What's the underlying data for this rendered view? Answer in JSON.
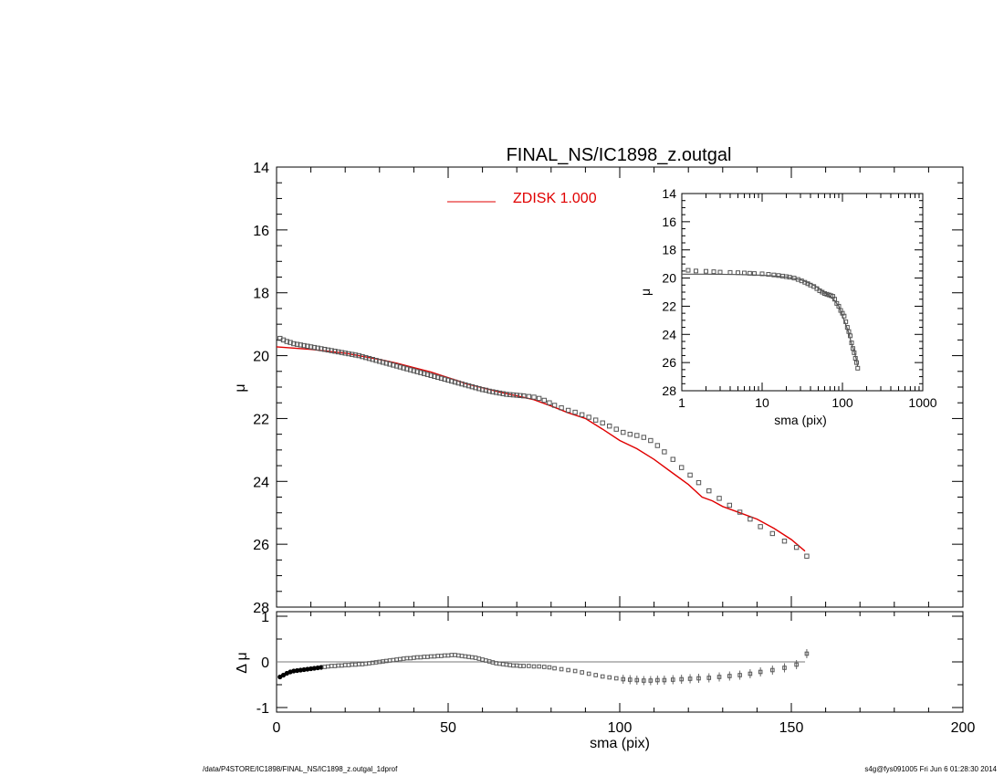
{
  "chart_data": [
    {
      "id": "main",
      "type": "scatter",
      "title": "FINAL_NS/IC1898_z.outgal",
      "xlabel": "",
      "ylabel": "μ",
      "xlim": [
        0,
        200
      ],
      "ylim": [
        28,
        14
      ],
      "y_inverted": true,
      "yticks": [
        14,
        16,
        18,
        20,
        22,
        24,
        26,
        28
      ],
      "legend": {
        "placement": "top-center",
        "entries": [
          {
            "name": "ZDISK  1.000",
            "color": "#e00000"
          }
        ]
      },
      "series": [
        {
          "name": "profile",
          "style": "open-squares",
          "color": "#555555",
          "x": [
            1.0,
            2.0,
            3.0,
            4.0,
            5.0,
            6.0,
            7.0,
            8.0,
            9.0,
            10.0,
            11.0,
            12.0,
            13.0,
            14.0,
            15.0,
            16.0,
            17.0,
            18.0,
            19.0,
            20.0,
            21.0,
            22.0,
            23.0,
            24.0,
            25.0,
            26.0,
            27.0,
            28.0,
            29.0,
            30.0,
            31.0,
            32.0,
            33.0,
            34.0,
            35.0,
            36.0,
            37.0,
            38.0,
            39.0,
            40.0,
            41.0,
            42.0,
            43.0,
            44.0,
            45.0,
            46.0,
            47.0,
            48.0,
            49.0,
            50.0,
            51.0,
            52.0,
            53.0,
            54.0,
            55.0,
            56.0,
            57.0,
            58.0,
            59.0,
            60.0,
            61.0,
            62.0,
            63.0,
            64.0,
            65.0,
            66.0,
            67.0,
            68.0,
            69.0,
            70.0,
            71.0,
            72.0,
            73.5,
            75.0,
            76.5,
            78.0,
            79.5,
            81.0,
            83.0,
            85.0,
            87.0,
            89.0,
            91.0,
            93.0,
            95.0,
            97.0,
            99.0,
            101.0,
            103.0,
            105.0,
            107.0,
            109.0,
            111.0,
            113.0,
            115.5,
            118.0,
            120.5,
            123.0,
            126.0,
            129.0,
            132.0,
            135.0,
            138.0,
            141.0,
            144.5,
            148.0,
            151.5,
            154.5
          ],
          "y": [
            19.45,
            19.5,
            19.55,
            19.58,
            19.62,
            19.64,
            19.66,
            19.68,
            19.7,
            19.72,
            19.74,
            19.76,
            19.78,
            19.8,
            19.82,
            19.84,
            19.86,
            19.88,
            19.9,
            19.92,
            19.94,
            19.96,
            19.98,
            20.0,
            20.03,
            20.06,
            20.09,
            20.12,
            20.15,
            20.18,
            20.21,
            20.24,
            20.27,
            20.3,
            20.33,
            20.36,
            20.39,
            20.42,
            20.45,
            20.48,
            20.51,
            20.54,
            20.57,
            20.6,
            20.63,
            20.66,
            20.69,
            20.72,
            20.75,
            20.78,
            20.81,
            20.84,
            20.87,
            20.9,
            20.93,
            20.96,
            20.99,
            21.02,
            21.05,
            21.08,
            21.1,
            21.13,
            21.15,
            21.17,
            21.19,
            21.21,
            21.23,
            21.24,
            21.25,
            21.26,
            21.27,
            21.28,
            21.3,
            21.32,
            21.36,
            21.42,
            21.5,
            21.58,
            21.66,
            21.74,
            21.8,
            21.88,
            21.96,
            22.05,
            22.14,
            22.24,
            22.34,
            22.44,
            22.5,
            22.54,
            22.6,
            22.7,
            22.86,
            23.06,
            23.3,
            23.56,
            23.8,
            24.04,
            24.3,
            24.54,
            24.76,
            24.98,
            25.2,
            25.44,
            25.66,
            25.9,
            26.1,
            26.38
          ]
        },
        {
          "name": "ZDISK  1.000",
          "style": "line",
          "color": "#e00000",
          "x": [
            0,
            5,
            10,
            15,
            20,
            25,
            30,
            35,
            40,
            45,
            50,
            55,
            60,
            65,
            70,
            75,
            80,
            85,
            90,
            95,
            100,
            105,
            110,
            115,
            120,
            124,
            127,
            130,
            135,
            140,
            145,
            150,
            154
          ],
          "y": [
            19.72,
            19.76,
            19.8,
            19.86,
            19.92,
            20.02,
            20.12,
            20.24,
            20.38,
            20.52,
            20.7,
            20.88,
            21.02,
            21.16,
            21.28,
            21.4,
            21.6,
            21.82,
            22.0,
            22.34,
            22.7,
            22.96,
            23.3,
            23.7,
            24.1,
            24.5,
            24.62,
            24.8,
            25.0,
            25.2,
            25.5,
            25.85,
            26.22
          ]
        }
      ]
    },
    {
      "id": "residual",
      "type": "scatter",
      "xlabel": "sma (pix)",
      "ylabel": "Δ μ",
      "xlim": [
        0,
        200
      ],
      "ylim": [
        -1.1,
        1.1
      ],
      "xticks": [
        0,
        50,
        100,
        150,
        200
      ],
      "yticks": [
        -1,
        0,
        1
      ],
      "zero_line": true,
      "series": [
        {
          "name": "delta",
          "style": "open-squares",
          "color": "#555555",
          "x": [
            1.0,
            2.0,
            3.0,
            4.0,
            5.0,
            6.0,
            7.0,
            8.0,
            9.0,
            10.0,
            11.0,
            12.0,
            13.0,
            14.0,
            15.0,
            16.0,
            17.0,
            18.0,
            19.0,
            20.0,
            21.0,
            22.0,
            23.0,
            24.0,
            25.0,
            26.0,
            27.0,
            28.0,
            29.0,
            30.0,
            31.0,
            32.0,
            33.0,
            34.0,
            35.0,
            36.0,
            37.0,
            38.0,
            39.0,
            40.0,
            41.0,
            42.0,
            43.0,
            44.0,
            45.0,
            46.0,
            47.0,
            48.0,
            49.0,
            50.0,
            51.0,
            52.0,
            53.0,
            54.0,
            55.0,
            56.0,
            57.0,
            58.0,
            59.0,
            60.0,
            61.0,
            62.0,
            63.0,
            64.0,
            65.0,
            66.0,
            67.0,
            68.0,
            69.0,
            70.0,
            71.0,
            72.0,
            73.5,
            75.0,
            76.5,
            78.0,
            79.5,
            81.0,
            83.0,
            85.0,
            87.0,
            89.0,
            91.0,
            93.0,
            95.0,
            97.0,
            99.0,
            101.0,
            103.0,
            105.0,
            107.0,
            109.0,
            111.0,
            113.0,
            115.5,
            118.0,
            120.5,
            123.0,
            126.0,
            129.0,
            132.0,
            135.0,
            138.0,
            141.0,
            144.5,
            148.0,
            151.5,
            154.5
          ],
          "y": [
            -0.33,
            -0.29,
            -0.25,
            -0.22,
            -0.2,
            -0.19,
            -0.18,
            -0.17,
            -0.16,
            -0.15,
            -0.14,
            -0.13,
            -0.12,
            -0.11,
            -0.1,
            -0.09,
            -0.09,
            -0.08,
            -0.08,
            -0.07,
            -0.07,
            -0.06,
            -0.06,
            -0.05,
            -0.05,
            -0.04,
            -0.03,
            -0.02,
            -0.01,
            0.0,
            0.01,
            0.02,
            0.03,
            0.04,
            0.05,
            0.06,
            0.07,
            0.08,
            0.08,
            0.09,
            0.1,
            0.1,
            0.11,
            0.11,
            0.12,
            0.12,
            0.13,
            0.13,
            0.14,
            0.14,
            0.15,
            0.15,
            0.14,
            0.13,
            0.12,
            0.11,
            0.1,
            0.09,
            0.07,
            0.05,
            0.03,
            0.01,
            -0.01,
            -0.03,
            -0.04,
            -0.05,
            -0.06,
            -0.07,
            -0.08,
            -0.08,
            -0.09,
            -0.09,
            -0.09,
            -0.1,
            -0.1,
            -0.11,
            -0.12,
            -0.14,
            -0.16,
            -0.18,
            -0.2,
            -0.23,
            -0.26,
            -0.29,
            -0.32,
            -0.34,
            -0.36,
            -0.38,
            -0.39,
            -0.4,
            -0.41,
            -0.41,
            -0.4,
            -0.4,
            -0.39,
            -0.38,
            -0.37,
            -0.36,
            -0.35,
            -0.33,
            -0.31,
            -0.29,
            -0.26,
            -0.22,
            -0.18,
            -0.13,
            -0.06,
            0.18
          ]
        }
      ]
    },
    {
      "id": "inset",
      "type": "scatter",
      "xlabel": "sma (pix)",
      "ylabel": "μ",
      "xscale": "log",
      "xlim": [
        1,
        1000
      ],
      "ylim": [
        28,
        14
      ],
      "y_inverted": true,
      "xticks": [
        1,
        10,
        100,
        1000
      ],
      "xticklabels": [
        "1",
        "10",
        "100",
        "1000"
      ],
      "yticks": [
        14,
        16,
        18,
        20,
        22,
        24,
        26,
        28
      ],
      "series": [
        {
          "name": "profile",
          "style": "open-squares",
          "color": "#555555",
          "x": [
            1.2,
            1.5,
            2.0,
            2.5,
            3.0,
            4.0,
            5.0,
            6.0,
            7.0,
            8.0,
            10.0,
            12.0,
            14.0,
            16.0,
            18.0,
            20.0,
            22.0,
            25.0,
            28.0,
            31.0,
            34.0,
            37.0,
            40.0,
            44.0,
            48.0,
            52.0,
            56.0,
            60.0,
            64.0,
            68.0,
            72.0,
            76.0,
            80.0,
            85.0,
            90.0,
            95.0,
            100.0,
            105.0,
            110.0,
            115.0,
            120.0,
            125.0,
            130.0,
            135.0,
            140.0,
            145.0,
            150.0,
            155.0
          ],
          "y": [
            19.45,
            19.5,
            19.52,
            19.55,
            19.58,
            19.6,
            19.62,
            19.64,
            19.66,
            19.68,
            19.7,
            19.74,
            19.78,
            19.82,
            19.86,
            19.9,
            19.94,
            20.0,
            20.1,
            20.2,
            20.3,
            20.4,
            20.5,
            20.6,
            20.75,
            20.9,
            21.0,
            21.1,
            21.15,
            21.2,
            21.25,
            21.3,
            21.5,
            21.8,
            22.0,
            22.3,
            22.5,
            22.7,
            23.1,
            23.5,
            23.8,
            24.1,
            24.6,
            25.0,
            25.3,
            25.7,
            26.0,
            26.4
          ]
        },
        {
          "name": "ZDISK  1.000",
          "style": "line",
          "color": "#555555",
          "x": [
            1.0,
            2.0,
            5.0,
            10.0,
            20.0,
            30.0,
            40.0,
            50.0,
            60.0,
            70.0,
            80.0,
            90.0,
            100.0,
            110.0,
            120.0,
            130.0,
            140.0,
            150.0,
            155.0
          ],
          "y": [
            19.72,
            19.72,
            19.75,
            19.8,
            19.92,
            20.12,
            20.38,
            20.7,
            21.02,
            21.28,
            21.6,
            22.0,
            22.7,
            23.3,
            23.9,
            24.7,
            25.2,
            25.85,
            26.3
          ]
        }
      ]
    }
  ],
  "footer": {
    "left": "/data/P4STORE/IC1898/FINAL_NS/IC1898_z.outgal_1dprof",
    "right": "s4g@fys091005  Fri Jun  6 01:28:30 2014"
  }
}
